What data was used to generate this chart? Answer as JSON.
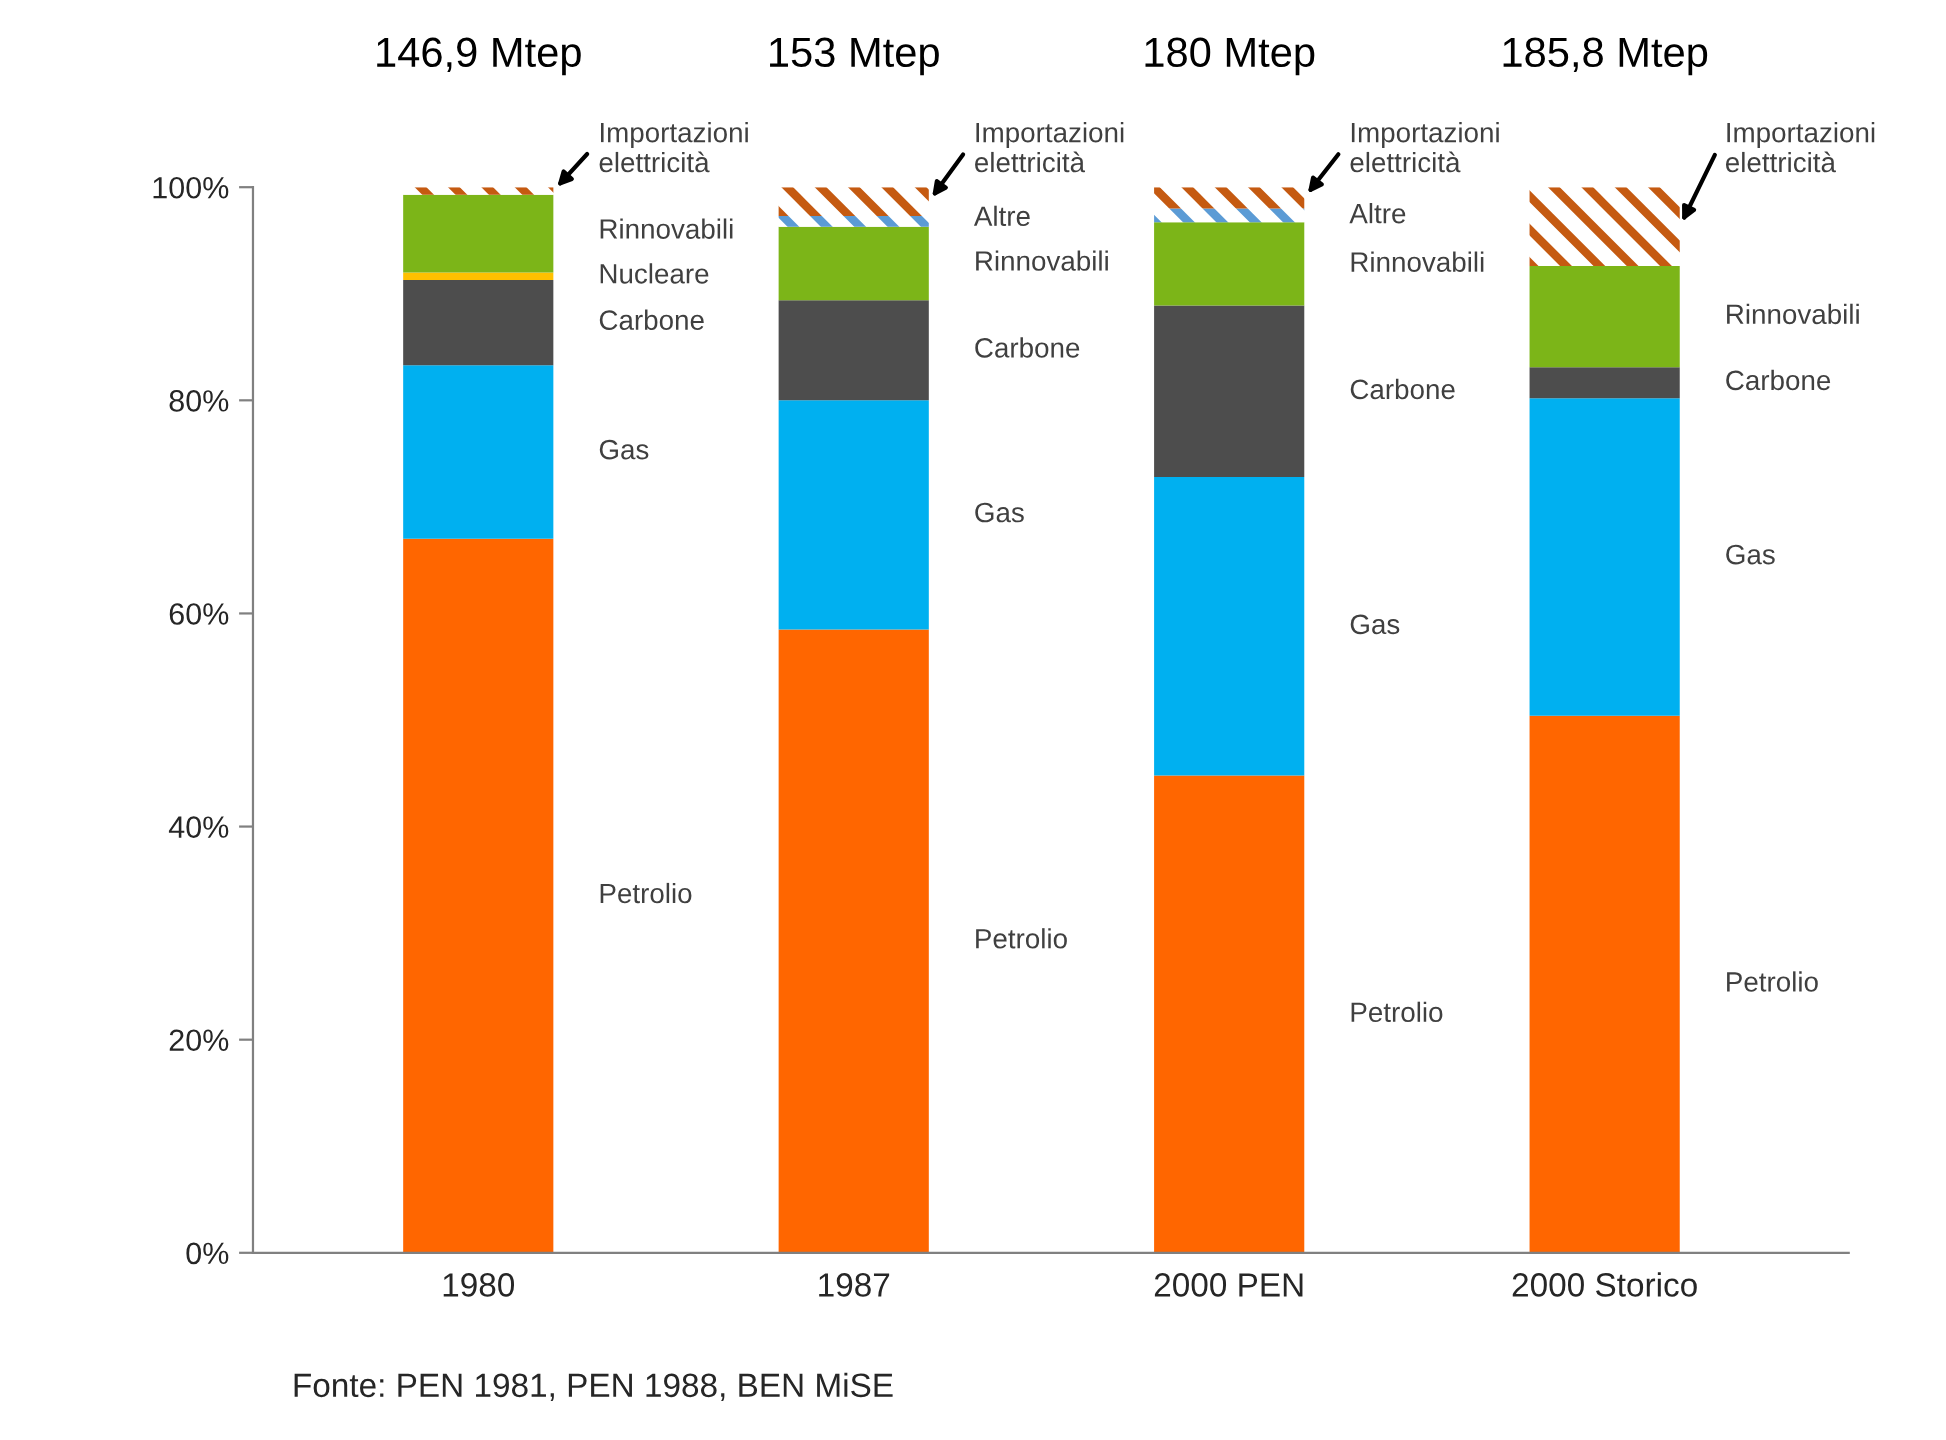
{
  "chart_data": {
    "type": "bar",
    "stacked": true,
    "categories": [
      "1980",
      "1987",
      "2000 PEN",
      "2000 Storico"
    ],
    "series": [
      {
        "name": "Petrolio",
        "color": "#ff6600",
        "values": [
          67,
          58.5,
          44.8,
          50.4
        ]
      },
      {
        "name": "Gas",
        "color": "#00b0f0",
        "values": [
          16.3,
          21.5,
          28,
          29.8
        ]
      },
      {
        "name": "Carbone",
        "color": "#4d4d4d",
        "values": [
          8,
          9.4,
          16.1,
          2.9
        ]
      },
      {
        "name": "Nucleare",
        "color": "#ffc000",
        "values": [
          0.7,
          null,
          null,
          null
        ]
      },
      {
        "name": "Rinnovabili",
        "color": "#7cb518",
        "values": [
          7.3,
          6.9,
          7.8,
          9.5
        ]
      },
      {
        "name": "Altre",
        "color": "#5b9bd5",
        "values": [
          null,
          1.0,
          1.3,
          null
        ]
      },
      {
        "name": "Importazioni\nelettricità",
        "color": "#c55a11",
        "values": [
          0.7,
          2.7,
          2.0,
          7.4
        ]
      }
    ],
    "ylim": [
      0,
      100
    ],
    "yticks": [
      {
        "value": 0,
        "label": "0%"
      },
      {
        "value": 20,
        "label": "20%"
      },
      {
        "value": 40,
        "label": "40%"
      },
      {
        "value": 60,
        "label": "60%"
      },
      {
        "value": 80,
        "label": "80%"
      },
      {
        "value": 100,
        "label": "100%"
      }
    ],
    "grid": false,
    "legend": false,
    "annotations": [
      "146,9 Mtep",
      "153 Mtep",
      "180 Mtep",
      "185,8 Mtep",
      "Fonte: PEN 1981, PEN 1988, BEN MiSE"
    ]
  }
}
